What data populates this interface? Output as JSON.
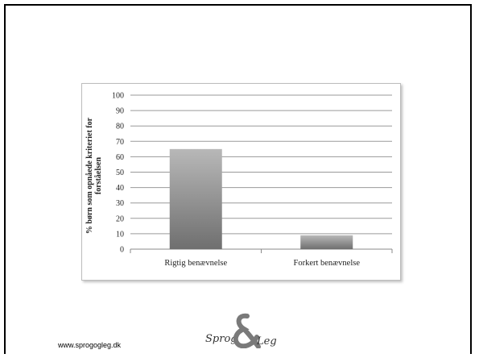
{
  "chart_data": {
    "type": "bar",
    "categories": [
      "Rigtig benævnelse",
      "Forkert benævnelse"
    ],
    "values": [
      65,
      9
    ],
    "title": "",
    "xlabel": "",
    "ylabel": "% børn som opnåede kriteriet for forståelsen",
    "ylabel_lines": [
      "% børn som opnåede kriteriet for",
      "forståelsen"
    ],
    "ylim": [
      0,
      100
    ],
    "yticks": [
      0,
      10,
      20,
      30,
      40,
      50,
      60,
      70,
      80,
      90,
      100
    ],
    "grid": true,
    "legend": "none",
    "bar_color_top": "#b8b8b8",
    "bar_color_bottom": "#6f6f6f"
  },
  "footer": {
    "url": "www.sprogogleg.dk",
    "logo_left": "Sprog",
    "logo_right": "Leg",
    "logo_color": "#7a7a7a"
  }
}
